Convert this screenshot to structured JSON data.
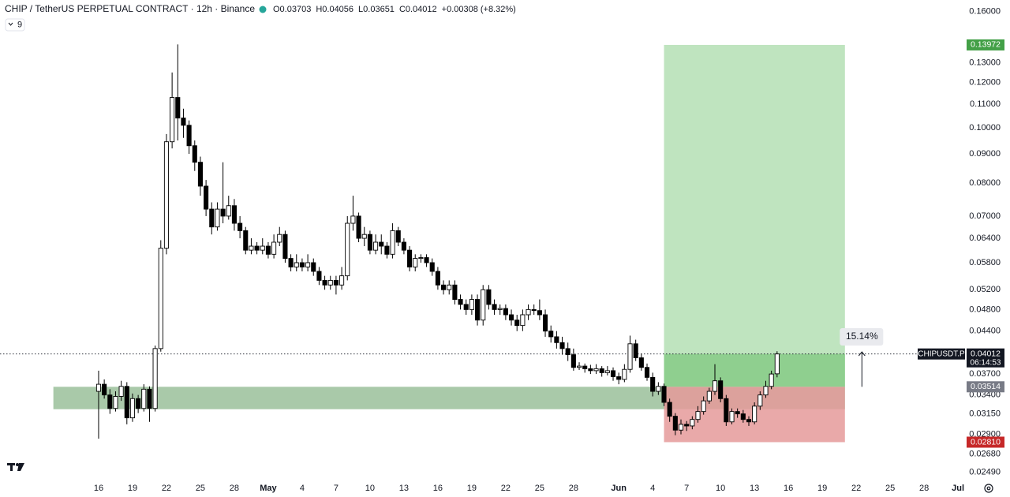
{
  "chart_data": {
    "type": "candlestick",
    "title": "CHIP / TetherUS PERPETUAL CONTRACT · 12h · Binance",
    "legend_values": [
      "O0.03703",
      "H0.04056",
      "L0.03651",
      "C0.04012",
      "+0.00308 (+8.32%)"
    ],
    "indicator_count": "9",
    "symbol": "CHIPUSDT.P",
    "countdown": "06:14:53",
    "log_scale": true,
    "up_color": "#ffffff",
    "down_color": "#000000",
    "outline_color": "#000000",
    "xlim": [
      7.28,
      92.55
    ],
    "ylim": [
      0.024,
      0.1675
    ],
    "xticks": [
      16,
      19,
      22,
      25,
      28,
      {
        "value": 31,
        "label": "May"
      },
      {
        "value": 34,
        "label": "4"
      },
      {
        "value": 37,
        "label": "7"
      },
      {
        "value": 40,
        "label": "10"
      },
      {
        "value": 43,
        "label": "13"
      },
      {
        "value": 46,
        "label": "16"
      },
      {
        "value": 49,
        "label": "19"
      },
      {
        "value": 52,
        "label": "22"
      },
      {
        "value": 55,
        "label": "25"
      },
      {
        "value": 58,
        "label": "28"
      },
      {
        "value": 62,
        "label": "Jun"
      },
      {
        "value": 65,
        "label": "4"
      },
      {
        "value": 68,
        "label": "7"
      },
      {
        "value": 71,
        "label": "10"
      },
      {
        "value": 74,
        "label": "13"
      },
      {
        "value": 77,
        "label": "16"
      },
      {
        "value": 80,
        "label": "19"
      },
      {
        "value": 83,
        "label": "22"
      },
      {
        "value": 86,
        "label": "25"
      },
      {
        "value": 89,
        "label": "28"
      },
      {
        "value": 92,
        "label": "Jul"
      }
    ],
    "yticks": [
      {
        "value": 0.16,
        "label": "0.16000"
      },
      {
        "value": 0.13,
        "label": "0.13000"
      },
      {
        "value": 0.12,
        "label": "0.12000"
      },
      {
        "value": 0.11,
        "label": "0.11000"
      },
      {
        "value": 0.1,
        "label": "0.10000"
      },
      {
        "value": 0.09,
        "label": "0.09000"
      },
      {
        "value": 0.08,
        "label": "0.08000"
      },
      {
        "value": 0.07,
        "label": "0.07000"
      },
      {
        "value": 0.064,
        "label": "0.06400"
      },
      {
        "value": 0.058,
        "label": "0.05800"
      },
      {
        "value": 0.052,
        "label": "0.05200"
      },
      {
        "value": 0.048,
        "label": "0.04800"
      },
      {
        "value": 0.044,
        "label": "0.04400"
      },
      {
        "value": 0.037,
        "label": "0.03700"
      },
      {
        "value": 0.034,
        "label": "0.03400"
      },
      {
        "value": 0.0315,
        "label": "0.03150"
      },
      {
        "value": 0.029,
        "label": "0.02900"
      },
      {
        "value": 0.0268,
        "label": "0.02680"
      },
      {
        "value": 0.0249,
        "label": "0.02490"
      }
    ],
    "x": [
      16,
      16.5,
      17,
      17.5,
      18,
      18.5,
      19,
      19.5,
      20,
      20.5,
      21,
      21.5,
      22,
      22.5,
      23,
      23.5,
      24,
      24.5,
      25,
      25.5,
      26,
      26.5,
      27,
      27.5,
      28,
      28.5,
      29,
      29.5,
      30,
      30.5,
      31,
      31.5,
      32,
      32.5,
      33,
      33.5,
      34,
      34.5,
      35,
      35.5,
      36,
      36.5,
      37,
      37.5,
      38,
      38.5,
      39,
      39.5,
      40,
      40.5,
      41,
      41.5,
      42,
      42.5,
      43,
      43.5,
      44,
      44.5,
      45,
      45.5,
      46,
      46.5,
      47,
      47.5,
      48,
      48.5,
      49,
      49.5,
      50,
      50.5,
      51,
      51.5,
      52,
      52.5,
      53,
      53.5,
      54,
      54.5,
      55,
      55.5,
      56,
      56.5,
      57,
      57.5,
      58,
      58.5,
      59,
      59.5,
      60,
      60.5,
      61,
      61.5,
      62,
      62.5,
      63,
      63.5,
      64,
      64.5,
      65,
      65.5,
      66,
      66.5,
      67,
      67.5,
      68,
      68.5,
      69,
      69.5,
      70,
      70.5,
      71,
      71.5,
      72,
      72.5,
      73,
      73.5,
      74,
      74.5,
      75,
      75.5,
      76
    ],
    "open": [
      0.0345,
      0.0355,
      0.034,
      0.0322,
      0.0338,
      0.0352,
      0.031,
      0.0335,
      0.0322,
      0.0348,
      0.0322,
      0.041,
      0.0615,
      0.0945,
      0.113,
      0.104,
      0.101,
      0.093,
      0.087,
      0.079,
      0.072,
      0.067,
      0.072,
      0.07,
      0.073,
      0.068,
      0.066,
      0.061,
      0.062,
      0.061,
      0.062,
      0.06,
      0.063,
      0.065,
      0.059,
      0.057,
      0.058,
      0.057,
      0.058,
      0.056,
      0.054,
      0.053,
      0.054,
      0.053,
      0.055,
      0.068,
      0.07,
      0.064,
      0.065,
      0.061,
      0.063,
      0.062,
      0.06,
      0.066,
      0.063,
      0.061,
      0.057,
      0.059,
      0.0592,
      0.058,
      0.056,
      0.053,
      0.052,
      0.053,
      0.05,
      0.049,
      0.048,
      0.05,
      0.046,
      0.052,
      0.049,
      0.048,
      0.0482,
      0.047,
      0.046,
      0.045,
      0.047,
      0.048,
      0.0478,
      0.047,
      0.044,
      0.043,
      0.042,
      0.041,
      0.04,
      0.038,
      0.0382,
      0.0378,
      0.0375,
      0.0378,
      0.0372,
      0.0375,
      0.0366,
      0.0362,
      0.0377,
      0.0418,
      0.0395,
      0.038,
      0.0365,
      0.0345,
      0.0352,
      0.033,
      0.0312,
      0.0295,
      0.0302,
      0.03,
      0.0308,
      0.0318,
      0.0332,
      0.0345,
      0.036,
      0.0335,
      0.0305,
      0.0318,
      0.0315,
      0.0308,
      0.0305,
      0.0325,
      0.034,
      0.0352,
      0.03703
    ],
    "high": [
      0.0375,
      0.0362,
      0.0348,
      0.0345,
      0.036,
      0.0358,
      0.0342,
      0.034,
      0.0355,
      0.0352,
      0.0415,
      0.0635,
      0.0975,
      0.125,
      0.14,
      0.108,
      0.103,
      0.095,
      0.089,
      0.081,
      0.074,
      0.074,
      0.087,
      0.076,
      0.075,
      0.07,
      0.067,
      0.064,
      0.063,
      0.064,
      0.063,
      0.065,
      0.067,
      0.066,
      0.06,
      0.06,
      0.059,
      0.06,
      0.059,
      0.057,
      0.055,
      0.055,
      0.055,
      0.057,
      0.07,
      0.076,
      0.071,
      0.067,
      0.066,
      0.065,
      0.065,
      0.063,
      0.068,
      0.067,
      0.064,
      0.062,
      0.06,
      0.06,
      0.06,
      0.059,
      0.057,
      0.054,
      0.054,
      0.054,
      0.051,
      0.05,
      0.051,
      0.051,
      0.053,
      0.053,
      0.05,
      0.049,
      0.049,
      0.048,
      0.047,
      0.048,
      0.049,
      0.049,
      0.05,
      0.048,
      0.045,
      0.044,
      0.043,
      0.042,
      0.041,
      0.0388,
      0.0386,
      0.0384,
      0.0385,
      0.0382,
      0.0382,
      0.038,
      0.0372,
      0.0385,
      0.0432,
      0.0425,
      0.0402,
      0.0386,
      0.0372,
      0.0358,
      0.0356,
      0.0335,
      0.0316,
      0.0308,
      0.0306,
      0.0312,
      0.0325,
      0.0338,
      0.035,
      0.0385,
      0.0365,
      0.034,
      0.0322,
      0.0322,
      0.032,
      0.0312,
      0.033,
      0.0345,
      0.036,
      0.0375,
      0.04056
    ],
    "low": [
      0.0285,
      0.0335,
      0.0315,
      0.0318,
      0.0332,
      0.0302,
      0.0305,
      0.0316,
      0.0318,
      0.0305,
      0.0318,
      0.0405,
      0.06,
      0.092,
      0.095,
      0.096,
      0.09,
      0.084,
      0.076,
      0.07,
      0.065,
      0.066,
      0.068,
      0.069,
      0.066,
      0.064,
      0.06,
      0.06,
      0.06,
      0.06,
      0.059,
      0.059,
      0.062,
      0.058,
      0.056,
      0.056,
      0.056,
      0.056,
      0.055,
      0.053,
      0.052,
      0.052,
      0.051,
      0.052,
      0.054,
      0.066,
      0.063,
      0.062,
      0.06,
      0.06,
      0.06,
      0.059,
      0.059,
      0.062,
      0.06,
      0.056,
      0.056,
      0.058,
      0.057,
      0.055,
      0.052,
      0.051,
      0.051,
      0.049,
      0.048,
      0.047,
      0.047,
      0.045,
      0.045,
      0.048,
      0.047,
      0.047,
      0.046,
      0.045,
      0.044,
      0.044,
      0.046,
      0.047,
      0.046,
      0.043,
      0.042,
      0.041,
      0.04,
      0.039,
      0.0375,
      0.0376,
      0.0372,
      0.037,
      0.037,
      0.0366,
      0.0368,
      0.036,
      0.0355,
      0.0358,
      0.0372,
      0.039,
      0.0375,
      0.036,
      0.0338,
      0.034,
      0.0325,
      0.0305,
      0.0289,
      0.029,
      0.0294,
      0.0296,
      0.0304,
      0.0314,
      0.0328,
      0.034,
      0.033,
      0.03,
      0.0302,
      0.031,
      0.0304,
      0.03,
      0.0302,
      0.032,
      0.0336,
      0.0348,
      0.03651
    ],
    "close": [
      0.0355,
      0.034,
      0.0322,
      0.0338,
      0.0352,
      0.031,
      0.0335,
      0.0322,
      0.0348,
      0.0322,
      0.041,
      0.0615,
      0.0945,
      0.113,
      0.104,
      0.101,
      0.093,
      0.087,
      0.079,
      0.072,
      0.067,
      0.072,
      0.07,
      0.073,
      0.068,
      0.066,
      0.061,
      0.062,
      0.061,
      0.062,
      0.06,
      0.063,
      0.065,
      0.059,
      0.057,
      0.058,
      0.057,
      0.058,
      0.056,
      0.054,
      0.053,
      0.054,
      0.053,
      0.055,
      0.068,
      0.07,
      0.064,
      0.065,
      0.061,
      0.063,
      0.062,
      0.06,
      0.066,
      0.063,
      0.061,
      0.057,
      0.059,
      0.0592,
      0.058,
      0.056,
      0.053,
      0.052,
      0.053,
      0.05,
      0.049,
      0.048,
      0.05,
      0.046,
      0.052,
      0.049,
      0.048,
      0.0482,
      0.047,
      0.046,
      0.045,
      0.047,
      0.048,
      0.0478,
      0.047,
      0.044,
      0.043,
      0.042,
      0.041,
      0.04,
      0.038,
      0.0382,
      0.0378,
      0.0375,
      0.0378,
      0.0372,
      0.0375,
      0.0366,
      0.0362,
      0.0377,
      0.0418,
      0.0395,
      0.038,
      0.0365,
      0.0345,
      0.0352,
      0.033,
      0.0312,
      0.0295,
      0.0302,
      0.03,
      0.0308,
      0.0318,
      0.0332,
      0.0345,
      0.036,
      0.0335,
      0.0305,
      0.0318,
      0.0315,
      0.0308,
      0.0305,
      0.0325,
      0.034,
      0.0352,
      0.037,
      0.04012
    ],
    "last_price": {
      "value": 0.04012,
      "label": "0.04012"
    },
    "zone": {
      "x": [
        12,
        82
      ],
      "y": [
        0.0321,
        0.03514
      ],
      "color": "#a9c9a9"
    },
    "position": {
      "x": [
        66,
        82
      ],
      "entry": {
        "value": 0.03514,
        "label": "0.03514"
      },
      "target": {
        "value": 0.13972,
        "label": "0.13972"
      },
      "stop": {
        "value": 0.0281,
        "label": "0.02810"
      },
      "profit_color": "#bfe4bf",
      "profit_active_color": "#8fcf8f",
      "loss_color": "#e59a9a"
    },
    "measure": {
      "x": 83.5,
      "from": 0.03514,
      "to": 0.04046,
      "label": "15.14%"
    }
  }
}
